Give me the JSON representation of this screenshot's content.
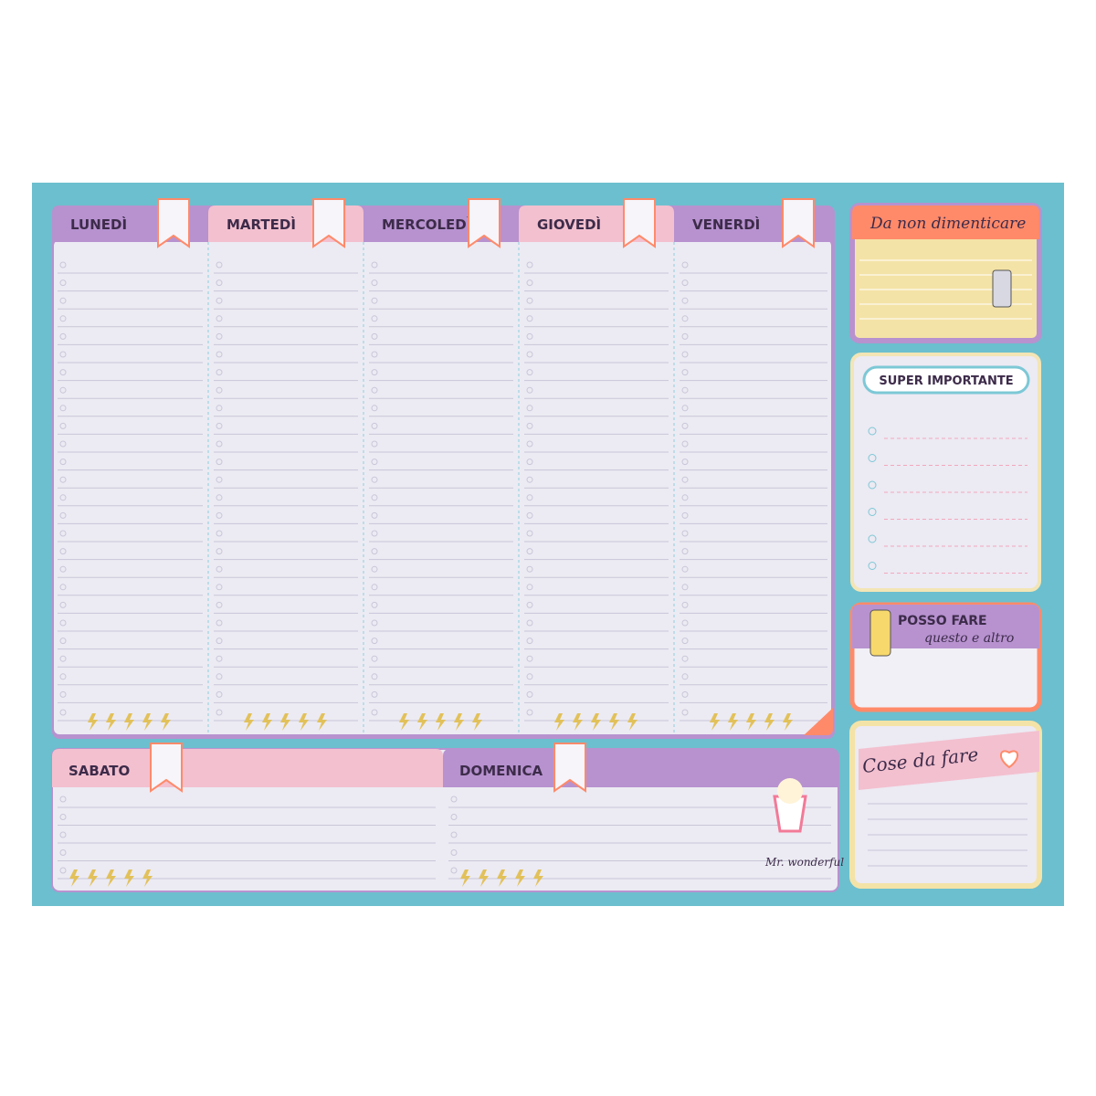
{
  "days": [
    "LUNEDÌ",
    "MARTEDÌ",
    "MERCOLEDÌ",
    "GIOVEDÌ",
    "VENERDÌ"
  ],
  "weekend": [
    "SABATO",
    "DOMENICA"
  ],
  "panels": {
    "reminder": {
      "title": "Da non dimenticare"
    },
    "important": {
      "title": "SUPER IMPORTANTE"
    },
    "can_do": {
      "title": "POSSO FARE",
      "subtitle": "questo e altro"
    },
    "todo": {
      "title": "Cose da fare"
    }
  },
  "brand": "Mr. wonderful"
}
